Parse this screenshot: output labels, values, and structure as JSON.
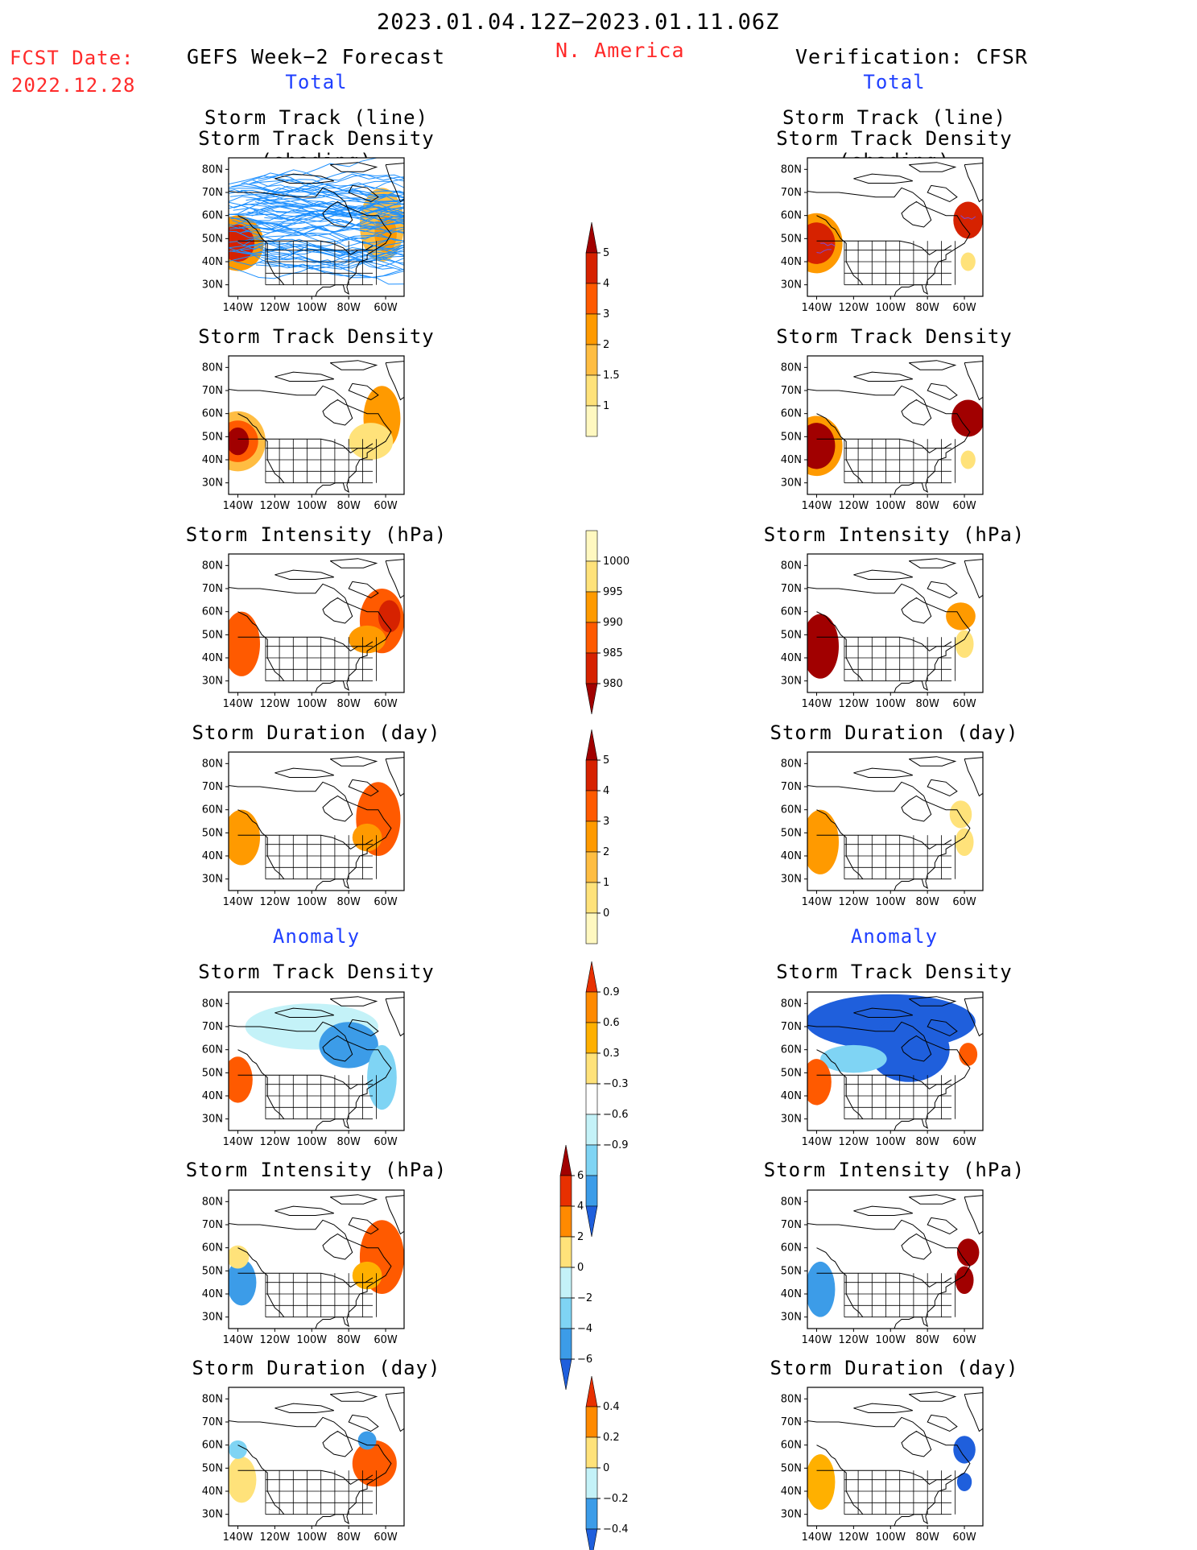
{
  "header": {
    "date_range": "2023.01.04.12Z−2023.01.11.06Z",
    "region": "N. America",
    "fcst_date_label": "FCST Date:",
    "fcst_date_value": "2022.12.28",
    "left_title": "GEFS Week−2 Forecast",
    "right_title": "Verification: CFSR",
    "total_label": "Total",
    "anomaly_label": "Anomaly"
  },
  "axes": {
    "lat_labels": [
      "80N",
      "70N",
      "60N",
      "50N",
      "40N",
      "30N"
    ],
    "lon_labels": [
      "140W",
      "120W",
      "100W",
      "80W",
      "60W"
    ]
  },
  "colors": {
    "density_scale": [
      "#fff8c0",
      "#ffe27a",
      "#ffbd42",
      "#ff9a00",
      "#ff5a00",
      "#d62200",
      "#a10000"
    ],
    "anomaly_warm": [
      "#ffe27a",
      "#ffb000",
      "#ff5a00",
      "#e83000"
    ],
    "anomaly_cool": [
      "#c4f2f8",
      "#7fd4f4",
      "#3c9ce8",
      "#1f5fdc"
    ],
    "storm_track_line": "#1e90ff"
  },
  "panels": {
    "titles": {
      "storm_track_l1": "Storm Track (line)",
      "storm_track_l2": "Storm Track Density (shading)",
      "density": "Storm Track Density",
      "intensity": "Storm Intensity (hPa)",
      "duration": "Storm Duration (day)"
    }
  },
  "colorbars": {
    "density": [
      "5",
      "4",
      "3",
      "2",
      "1.5",
      "1"
    ],
    "intensity": [
      "1000",
      "995",
      "990",
      "985",
      "980"
    ],
    "duration": [
      "5",
      "4",
      "3",
      "2",
      "1",
      "0"
    ],
    "density_anom": [
      "0.9",
      "0.6",
      "0.3",
      "−0.3",
      "−0.6",
      "−0.9"
    ],
    "intensity_anom": [
      "6",
      "4",
      "2",
      "0",
      "−2",
      "−4",
      "−6"
    ],
    "duration_anom": [
      "0.4",
      "0.2",
      "0",
      "−0.2",
      "−0.4"
    ]
  }
}
